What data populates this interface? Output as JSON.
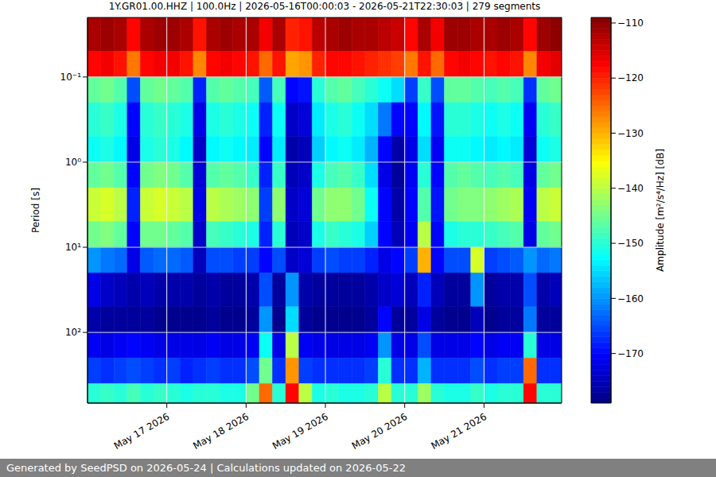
{
  "chart_data": {
    "type": "heatmap",
    "title": "1Y.GR01.00.HHZ | 100.0Hz | 2026-05-16T00:00:03 - 2026-05-21T22:30:03 | 279 segments",
    "y_label": "Period [s]",
    "footer": "Generated by SeedPSD on 2026-05-24 | Calculations updated on 2026-05-22",
    "log": "y",
    "grid": true,
    "xlim": [
      0,
      143.5
    ],
    "xticks": [
      {
        "value": 24,
        "label": "May 17 2026"
      },
      {
        "value": 48,
        "label": "May 18 2026"
      },
      {
        "value": 72,
        "label": "May 19 2026"
      },
      {
        "value": 96,
        "label": "May 20 2026"
      },
      {
        "value": 120,
        "label": "May 21 2026"
      }
    ],
    "ylim": [
      0.02,
      676
    ],
    "yticks": [
      {
        "value": 0.1,
        "label": "10⁻¹"
      },
      {
        "value": 1,
        "label": "10⁰"
      },
      {
        "value": 10,
        "label": "10¹"
      },
      {
        "value": 100,
        "label": "10²"
      }
    ],
    "x_edges": [
      0,
      4,
      8,
      12,
      16,
      20,
      24,
      28,
      32,
      36,
      40,
      44,
      48,
      52,
      56,
      60,
      64,
      68,
      72,
      76,
      80,
      84,
      88,
      92,
      96,
      100,
      104,
      108,
      112,
      116,
      120,
      124,
      128,
      132,
      136,
      140,
      143.5
    ],
    "y_edges": [
      0.02,
      0.05,
      0.1,
      0.2,
      0.5,
      1,
      2,
      5,
      10,
      20,
      50,
      100,
      200,
      400,
      676
    ],
    "values": [
      [
        -112,
        -111,
        -112,
        -118,
        -112,
        -111,
        -111,
        -112,
        -119,
        -112,
        -111,
        -112,
        -112,
        -117,
        -112,
        -120,
        -119,
        -113,
        -112,
        -111,
        -112,
        -112,
        -113,
        -114,
        -118,
        -112,
        -117,
        -111,
        -111,
        -112,
        -112,
        -111,
        -112,
        -118,
        -111,
        -110
      ],
      [
        -118,
        -117,
        -119,
        -126,
        -118,
        -117,
        -117,
        -119,
        -127,
        -118,
        -117,
        -118,
        -119,
        -125,
        -119,
        -129,
        -128,
        -120,
        -118,
        -118,
        -119,
        -120,
        -121,
        -122,
        -126,
        -119,
        -125,
        -118,
        -117,
        -118,
        -119,
        -118,
        -119,
        -127,
        -117,
        -116
      ],
      [
        -146,
        -145,
        -147,
        -165,
        -146,
        -145,
        -146,
        -147,
        -168,
        -147,
        -146,
        -147,
        -148,
        -164,
        -148,
        -170,
        -169,
        -150,
        -147,
        -146,
        -148,
        -150,
        -152,
        -155,
        -166,
        -149,
        -165,
        -146,
        -146,
        -147,
        -148,
        -147,
        -148,
        -167,
        -146,
        -145
      ],
      [
        -150,
        -149,
        -151,
        -170,
        -150,
        -149,
        -150,
        -151,
        -172,
        -151,
        -150,
        -151,
        -152,
        -168,
        -152,
        -174,
        -173,
        -154,
        -151,
        -150,
        -152,
        -155,
        -162,
        -170,
        -170,
        -153,
        -169,
        -150,
        -150,
        -151,
        -152,
        -151,
        -152,
        -171,
        -150,
        -149
      ],
      [
        -152,
        -151,
        -153,
        -172,
        -151,
        -150,
        -151,
        -153,
        -174,
        -153,
        -152,
        -153,
        -154,
        -170,
        -154,
        -176,
        -175,
        -156,
        -153,
        -152,
        -154,
        -158,
        -170,
        -176,
        -172,
        -155,
        -171,
        -152,
        -152,
        -153,
        -154,
        -153,
        -154,
        -173,
        -152,
        -151
      ],
      [
        -146,
        -145,
        -147,
        -170,
        -145,
        -144,
        -145,
        -147,
        -173,
        -147,
        -146,
        -147,
        -149,
        -168,
        -149,
        -175,
        -174,
        -151,
        -148,
        -147,
        -149,
        -155,
        -172,
        -177,
        -171,
        -150,
        -170,
        -147,
        -146,
        -147,
        -148,
        -147,
        -148,
        -172,
        -146,
        -145
      ],
      [
        -139,
        -138,
        -140,
        -168,
        -139,
        -138,
        -139,
        -140,
        -172,
        -140,
        -141,
        -142,
        -143,
        -166,
        -143,
        -174,
        -173,
        -145,
        -143,
        -143,
        -145,
        -152,
        -170,
        -176,
        -170,
        -147,
        -169,
        -145,
        -144,
        -144,
        -143,
        -142,
        -141,
        -171,
        -140,
        -139
      ],
      [
        -145,
        -144,
        -146,
        -170,
        -145,
        -145,
        -146,
        -147,
        -174,
        -148,
        -149,
        -150,
        -151,
        -168,
        -150,
        -175,
        -174,
        -151,
        -149,
        -150,
        -151,
        -156,
        -170,
        -175,
        -171,
        -140,
        -170,
        -151,
        -150,
        -150,
        -149,
        -148,
        -147,
        -172,
        -146,
        -145
      ],
      [
        -160,
        -162,
        -163,
        -172,
        -164,
        -163,
        -163,
        -164,
        -175,
        -165,
        -165,
        -166,
        -166,
        -170,
        -165,
        -174,
        -173,
        -166,
        -165,
        -166,
        -166,
        -168,
        -172,
        -170,
        -166,
        -130,
        -170,
        -165,
        -165,
        -138,
        -166,
        -165,
        -164,
        -160,
        -163,
        -162
      ],
      [
        -172,
        -174,
        -175,
        -176,
        -175,
        -176,
        -176,
        -176,
        -177,
        -176,
        -177,
        -177,
        -176,
        -165,
        -177,
        -160,
        -176,
        -177,
        -177,
        -177,
        -177,
        -176,
        -174,
        -173,
        -175,
        -168,
        -175,
        -177,
        -177,
        -160,
        -177,
        -176,
        -176,
        -165,
        -176,
        -175
      ],
      [
        -176,
        -177,
        -177,
        -177,
        -177,
        -178,
        -178,
        -178,
        -178,
        -177,
        -178,
        -178,
        -177,
        -160,
        -178,
        -155,
        -177,
        -178,
        -178,
        -178,
        -178,
        -177,
        -170,
        -177,
        -177,
        -172,
        -177,
        -178,
        -178,
        -175,
        -178,
        -177,
        -177,
        -162,
        -177,
        -177
      ],
      [
        -171,
        -172,
        -171,
        -170,
        -171,
        -172,
        -172,
        -172,
        -172,
        -171,
        -172,
        -172,
        -171,
        -152,
        -172,
        -140,
        -171,
        -172,
        -172,
        -172,
        -172,
        -171,
        -160,
        -172,
        -172,
        -165,
        -172,
        -172,
        -172,
        -170,
        -172,
        -171,
        -171,
        -150,
        -172,
        -172
      ],
      [
        -166,
        -167,
        -166,
        -165,
        -166,
        -167,
        -166,
        -168,
        -167,
        -166,
        -167,
        -167,
        -165,
        -145,
        -167,
        -128,
        -166,
        -167,
        -167,
        -167,
        -167,
        -166,
        -150,
        -167,
        -167,
        -158,
        -167,
        -167,
        -167,
        -165,
        -167,
        -166,
        -166,
        -125,
        -167,
        -167
      ],
      [
        -150,
        -149,
        -150,
        -148,
        -150,
        -149,
        -150,
        -151,
        -150,
        -150,
        -151,
        -151,
        -145,
        -125,
        -150,
        -118,
        -140,
        -151,
        -150,
        -151,
        -151,
        -150,
        -140,
        -150,
        -150,
        -142,
        -150,
        -151,
        -151,
        -149,
        -151,
        -150,
        -150,
        -118,
        -150,
        -150
      ]
    ],
    "colorbar": {
      "label": "Amplitude [m²/s⁴/Hz] [dB]",
      "range": [
        -179,
        -109
      ],
      "ticks": [
        {
          "value": -110,
          "label": "−110"
        },
        {
          "value": -120,
          "label": "−120"
        },
        {
          "value": -130,
          "label": "−130"
        },
        {
          "value": -140,
          "label": "−140"
        },
        {
          "value": -150,
          "label": "−150"
        },
        {
          "value": -160,
          "label": "−160"
        },
        {
          "value": -170,
          "label": "−170"
        }
      ]
    }
  }
}
